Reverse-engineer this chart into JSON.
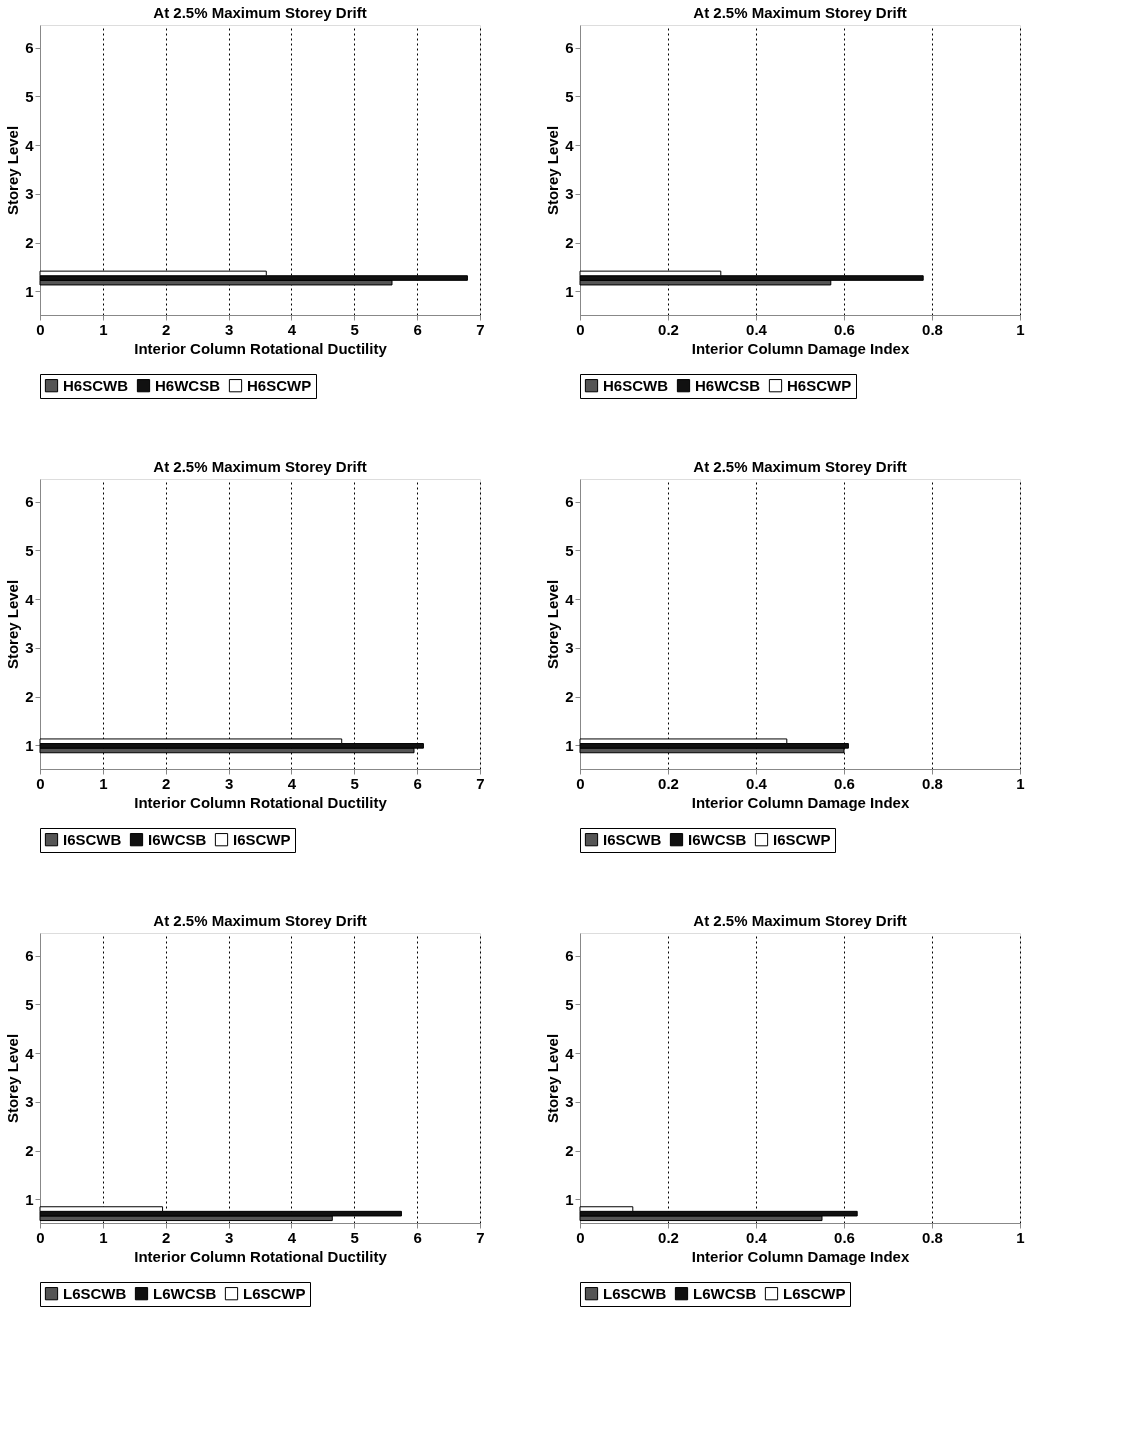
{
  "chart_data": [
    {
      "type": "bar",
      "orientation": "horizontal",
      "title": "At 2.5% Maximum Storey Drift",
      "xlabel": "Interior Column Rotational Ductility",
      "ylabel": "Storey Level",
      "categories": [
        "6",
        "5",
        "4",
        "3",
        "2",
        "1"
      ],
      "series": [
        {
          "name": "H6SCWB",
          "color": "#555555",
          "values": [
            null,
            null,
            null,
            null,
            null,
            5.6
          ]
        },
        {
          "name": "H6WCSB",
          "color": "#111111",
          "values": [
            null,
            null,
            null,
            null,
            null,
            6.8
          ]
        },
        {
          "name": "H6SCWP",
          "color": "#ffffff",
          "values": [
            null,
            null,
            null,
            null,
            null,
            3.6
          ]
        }
      ],
      "xlim": [
        0,
        7
      ],
      "xticks": [
        0,
        1,
        2,
        3,
        4,
        5,
        6,
        7
      ],
      "grid": "x",
      "legend": "bottom"
    },
    {
      "type": "bar",
      "orientation": "horizontal",
      "title": "At 2.5% Maximum Storey Drift",
      "xlabel": "Interior Column Damage Index",
      "ylabel": "Storey Level",
      "categories": [
        "6",
        "5",
        "4",
        "3",
        "2",
        "1"
      ],
      "series": [
        {
          "name": "H6SCWB",
          "color": "#555555",
          "values": [
            null,
            null,
            null,
            null,
            null,
            0.57
          ]
        },
        {
          "name": "H6WCSB",
          "color": "#111111",
          "values": [
            null,
            null,
            null,
            null,
            null,
            0.78
          ]
        },
        {
          "name": "H6SCWP",
          "color": "#ffffff",
          "values": [
            null,
            null,
            null,
            null,
            null,
            0.32
          ]
        }
      ],
      "xlim": [
        0,
        1
      ],
      "xticks": [
        0,
        0.2,
        0.4,
        0.6,
        0.8,
        1
      ],
      "grid": "x",
      "legend": "bottom"
    },
    {
      "type": "bar",
      "orientation": "horizontal",
      "title": "At 2.5% Maximum Storey Drift",
      "xlabel": "Interior Column Rotational Ductility",
      "ylabel": "Storey Level",
      "categories": [
        "6",
        "5",
        "4",
        "3",
        "2",
        "1"
      ],
      "series": [
        {
          "name": "I6SCWB",
          "color": "#555555",
          "values": [
            null,
            null,
            null,
            null,
            null,
            5.95
          ]
        },
        {
          "name": "I6WCSB",
          "color": "#111111",
          "values": [
            null,
            null,
            null,
            null,
            null,
            6.1
          ]
        },
        {
          "name": "I6SCWP",
          "color": "#ffffff",
          "values": [
            null,
            null,
            null,
            null,
            null,
            4.8
          ]
        }
      ],
      "xlim": [
        0,
        7
      ],
      "xticks": [
        0,
        1,
        2,
        3,
        4,
        5,
        6,
        7
      ],
      "grid": "x",
      "legend": "bottom"
    },
    {
      "type": "bar",
      "orientation": "horizontal",
      "title": "At 2.5% Maximum Storey Drift",
      "xlabel": "Interior Column Damage Index",
      "ylabel": "Storey Level",
      "categories": [
        "6",
        "5",
        "4",
        "3",
        "2",
        "1"
      ],
      "series": [
        {
          "name": "I6SCWB",
          "color": "#555555",
          "values": [
            null,
            null,
            null,
            null,
            null,
            0.6
          ]
        },
        {
          "name": "I6WCSB",
          "color": "#111111",
          "values": [
            null,
            null,
            null,
            null,
            null,
            0.61
          ]
        },
        {
          "name": "I6SCWP",
          "color": "#ffffff",
          "values": [
            null,
            null,
            null,
            null,
            null,
            0.47
          ]
        }
      ],
      "xlim": [
        0,
        1
      ],
      "xticks": [
        0,
        0.2,
        0.4,
        0.6,
        0.8,
        1
      ],
      "grid": "x",
      "legend": "bottom"
    },
    {
      "type": "bar",
      "orientation": "horizontal",
      "title": "At 2.5% Maximum Storey Drift",
      "xlabel": "Interior Column Rotational Ductility",
      "ylabel": "Storey Level",
      "categories": [
        "6",
        "5",
        "4",
        "3",
        "2",
        "1"
      ],
      "series": [
        {
          "name": "L6SCWB",
          "color": "#555555",
          "values": [
            null,
            null,
            null,
            null,
            null,
            4.65
          ]
        },
        {
          "name": "L6WCSB",
          "color": "#111111",
          "values": [
            null,
            null,
            null,
            null,
            null,
            5.75
          ]
        },
        {
          "name": "L6SCWP",
          "color": "#ffffff",
          "values": [
            null,
            null,
            null,
            null,
            null,
            1.95
          ]
        }
      ],
      "xlim": [
        0,
        7
      ],
      "xticks": [
        0,
        1,
        2,
        3,
        4,
        5,
        6,
        7
      ],
      "grid": "x",
      "legend": "bottom"
    },
    {
      "type": "bar",
      "orientation": "horizontal",
      "title": "At 2.5% Maximum Storey Drift",
      "xlabel": "Interior Column Damage Index",
      "ylabel": "Storey Level",
      "categories": [
        "6",
        "5",
        "4",
        "3",
        "2",
        "1"
      ],
      "series": [
        {
          "name": "L6SCWB",
          "color": "#555555",
          "values": [
            null,
            null,
            null,
            null,
            null,
            0.55
          ]
        },
        {
          "name": "L6WCSB",
          "color": "#111111",
          "values": [
            null,
            null,
            null,
            null,
            null,
            0.63
          ]
        },
        {
          "name": "L6SCWP",
          "color": "#ffffff",
          "values": [
            null,
            null,
            null,
            null,
            null,
            0.12
          ]
        }
      ],
      "xlim": [
        0,
        1
      ],
      "xticks": [
        0,
        0.2,
        0.4,
        0.6,
        0.8,
        1
      ],
      "grid": "x",
      "legend": "bottom"
    }
  ]
}
